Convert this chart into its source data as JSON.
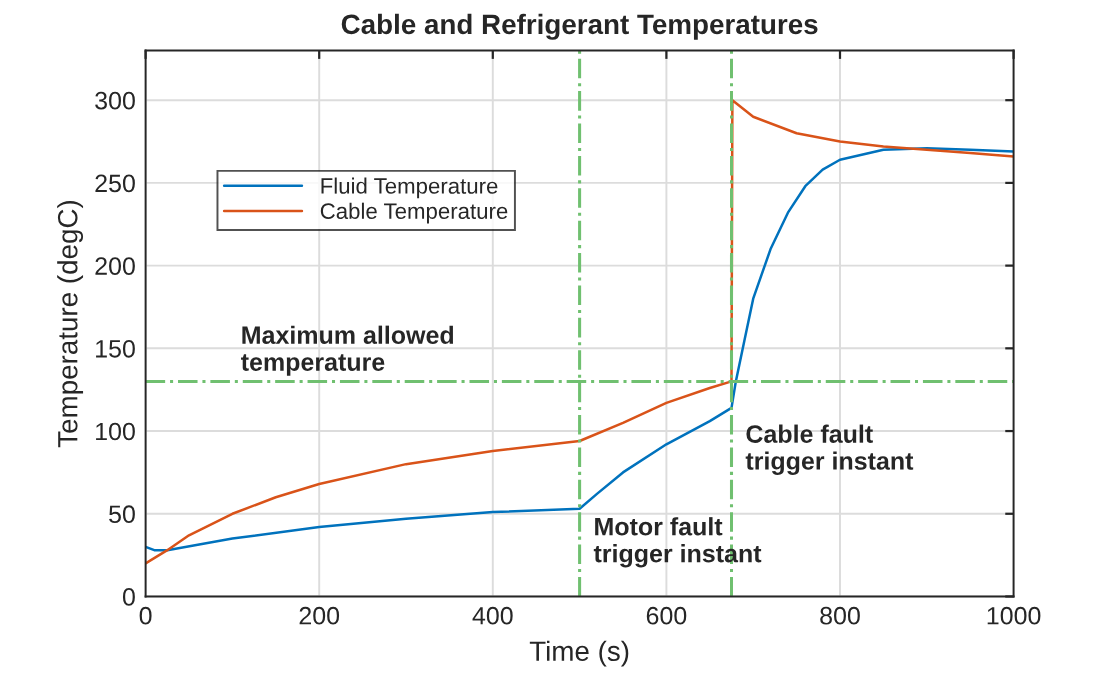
{
  "chart_data": {
    "type": "line",
    "title": "Cable and Refrigerant Temperatures",
    "xlabel": "Time (s)",
    "ylabel": "Temperature (degC)",
    "xlim": [
      0,
      1000
    ],
    "xticks": [
      0,
      200,
      400,
      600,
      800,
      1000
    ],
    "ylim": [
      0,
      330
    ],
    "yticks": [
      0,
      50,
      100,
      150,
      200,
      250,
      300
    ],
    "grid": true,
    "legend": "top left",
    "line_style": "solid",
    "series": [
      {
        "name": "Fluid Temperature",
        "color": "#0072bd",
        "x": [
          0,
          10,
          25,
          100,
          200,
          300,
          400,
          500,
          520,
          550,
          600,
          650,
          675,
          680,
          690,
          700,
          720,
          740,
          760,
          780,
          800,
          850,
          900,
          950,
          1000
        ],
        "values": [
          30,
          28,
          28,
          35,
          42,
          47,
          51,
          53,
          62,
          75,
          92,
          106,
          114,
          130,
          155,
          180,
          210,
          232,
          248,
          258,
          264,
          270,
          271,
          270,
          269
        ]
      },
      {
        "name": "Cable Temperature",
        "color": "#d95319",
        "x": [
          0,
          25,
          50,
          100,
          150,
          200,
          300,
          400,
          500,
          550,
          600,
          650,
          675,
          676,
          700,
          750,
          800,
          850,
          900,
          950,
          1000
        ],
        "values": [
          20,
          28,
          37,
          50,
          60,
          68,
          80,
          88,
          94,
          105,
          117,
          126,
          130,
          300,
          290,
          280,
          275,
          272,
          270,
          268,
          266
        ]
      }
    ],
    "ref_lines": [
      {
        "axis": "x",
        "value": 500,
        "color": "#70c070",
        "line_style": "dashdot"
      },
      {
        "axis": "x",
        "value": 675,
        "color": "#70c070",
        "line_style": "dashdot"
      },
      {
        "axis": "y",
        "value": 130,
        "color": "#70c070",
        "line_style": "dashdot"
      }
    ],
    "annotations": [
      {
        "text": "Maximum allowed\ntemperature",
        "x": 100,
        "y": 130
      },
      {
        "text": "Motor fault\ntrigger instant",
        "x": 500,
        "y": 53
      },
      {
        "text": "Cable fault\ntrigger instant",
        "x": 675,
        "y": 114
      }
    ]
  }
}
